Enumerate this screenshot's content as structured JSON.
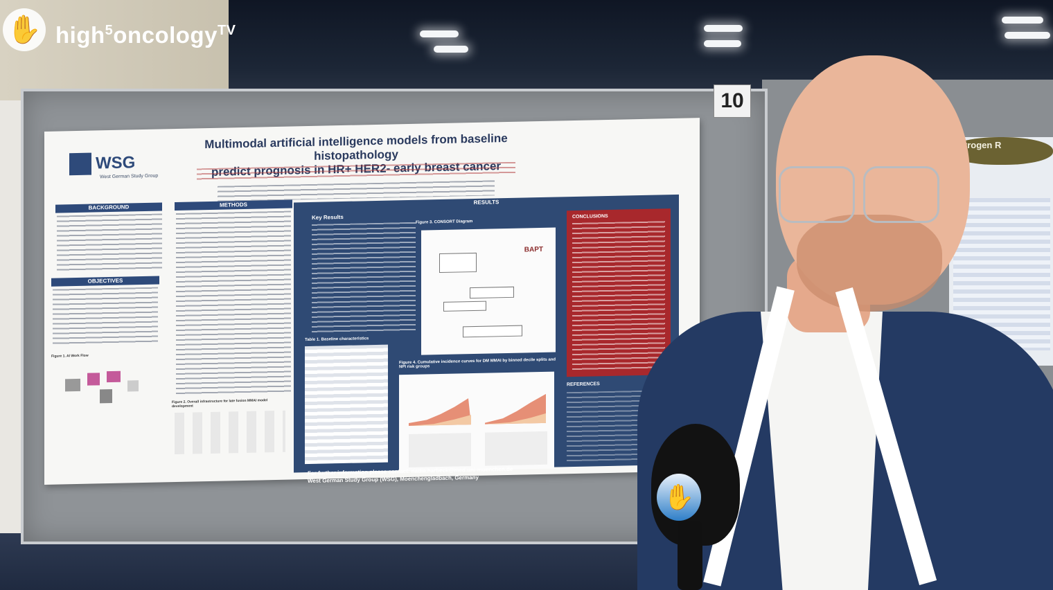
{
  "overlay": {
    "brand_prefix": "high",
    "brand_superscript": "5",
    "brand_main": "oncology",
    "brand_tv": "TV"
  },
  "booth": {
    "board_number": "10"
  },
  "poster": {
    "logo": "WSG",
    "logo_sub": "West German Study Group",
    "title_line1": "Multimodal artificial intelligence models from baseline histopathology",
    "title_line2": "predict prognosis in HR+ HER2- early breast cancer",
    "sections": {
      "background": "BACKGROUND",
      "objectives": "OBJECTIVES",
      "methods": "METHODS",
      "results": "RESULTS",
      "key_results": "Key Results",
      "conclusions": "CONCLUSIONS",
      "references": "REFERENCES"
    },
    "figure1": "Figure 1. AI Work Flow",
    "figure2": "Figure 2. Overall infrastructure for late fusion MMAI model development",
    "figure3": "Figure 3. CONSORT Diagram",
    "figure4": "Figure 4. Cumulative incidence curves for DM MMAI by binned decile splits and NPI risk groups",
    "table1": "Table 1. Baseline characteristics",
    "consort_logo": "BAPT",
    "contact_line1": "For further information please contact: nadia.harbeck@med.uni-muenchen.de",
    "contact_line2": "West German Study Group (WSG), Moenchengladbach, Germany"
  },
  "right_poster": {
    "title": "Estrogen R"
  }
}
